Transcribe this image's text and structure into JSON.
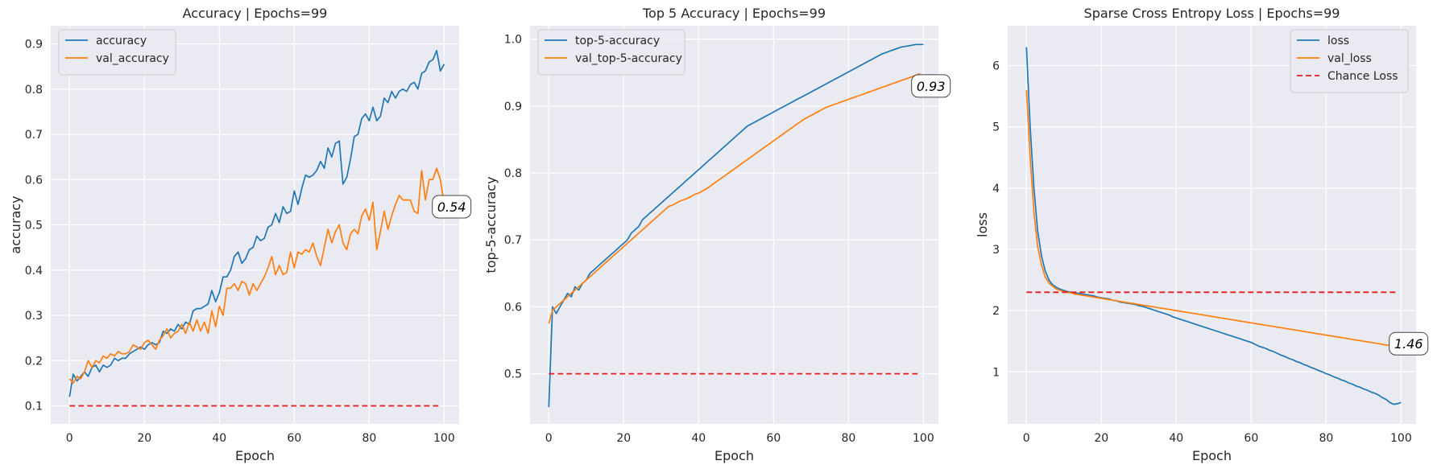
{
  "chart_data": [
    {
      "type": "line",
      "title": "Accuracy | Epochs=99",
      "xlabel": "Epoch",
      "ylabel": "accuracy",
      "xlim": [
        -5,
        104
      ],
      "ylim": [
        0.06,
        0.94
      ],
      "xticks": [
        0,
        20,
        40,
        60,
        80,
        100
      ],
      "yticks": [
        0.1,
        0.2,
        0.3,
        0.4,
        0.5,
        0.6,
        0.7,
        0.8,
        0.9
      ],
      "grid": true,
      "legend": "top-left",
      "annotation": {
        "text": "0.54",
        "x": 102,
        "y": 0.54
      },
      "series": [
        {
          "name": "accuracy",
          "color": "#1f77b4",
          "dashed": false,
          "values": [
            0.12,
            0.17,
            0.155,
            0.165,
            0.175,
            0.165,
            0.185,
            0.19,
            0.175,
            0.19,
            0.185,
            0.19,
            0.205,
            0.2,
            0.205,
            0.205,
            0.215,
            0.22,
            0.225,
            0.23,
            0.225,
            0.235,
            0.24,
            0.235,
            0.24,
            0.265,
            0.26,
            0.27,
            0.265,
            0.28,
            0.27,
            0.285,
            0.28,
            0.31,
            0.315,
            0.315,
            0.32,
            0.325,
            0.355,
            0.33,
            0.35,
            0.385,
            0.385,
            0.4,
            0.43,
            0.44,
            0.415,
            0.425,
            0.445,
            0.45,
            0.475,
            0.465,
            0.47,
            0.495,
            0.5,
            0.525,
            0.505,
            0.54,
            0.525,
            0.53,
            0.575,
            0.545,
            0.58,
            0.61,
            0.605,
            0.61,
            0.62,
            0.64,
            0.625,
            0.67,
            0.65,
            0.68,
            0.685,
            0.59,
            0.605,
            0.645,
            0.695,
            0.7,
            0.735,
            0.745,
            0.73,
            0.76,
            0.73,
            0.74,
            0.78,
            0.77,
            0.795,
            0.78,
            0.795,
            0.8,
            0.795,
            0.81,
            0.815,
            0.8,
            0.835,
            0.84,
            0.86,
            0.865,
            0.885,
            0.84,
            0.855
          ]
        },
        {
          "name": "val_accuracy",
          "color": "#ff7f0e",
          "dashed": false,
          "values": [
            0.16,
            0.15,
            0.165,
            0.16,
            0.175,
            0.2,
            0.185,
            0.2,
            0.195,
            0.21,
            0.205,
            0.215,
            0.21,
            0.22,
            0.215,
            0.215,
            0.22,
            0.235,
            0.23,
            0.225,
            0.24,
            0.245,
            0.235,
            0.225,
            0.245,
            0.255,
            0.27,
            0.25,
            0.26,
            0.265,
            0.28,
            0.26,
            0.285,
            0.265,
            0.29,
            0.265,
            0.285,
            0.26,
            0.31,
            0.275,
            0.32,
            0.3,
            0.36,
            0.36,
            0.37,
            0.355,
            0.375,
            0.37,
            0.345,
            0.37,
            0.355,
            0.37,
            0.385,
            0.405,
            0.43,
            0.39,
            0.41,
            0.39,
            0.395,
            0.44,
            0.405,
            0.44,
            0.435,
            0.445,
            0.44,
            0.46,
            0.43,
            0.41,
            0.45,
            0.49,
            0.46,
            0.485,
            0.5,
            0.46,
            0.445,
            0.48,
            0.49,
            0.48,
            0.52,
            0.535,
            0.51,
            0.55,
            0.445,
            0.485,
            0.53,
            0.49,
            0.52,
            0.545,
            0.565,
            0.555,
            0.555,
            0.555,
            0.53,
            0.525,
            0.62,
            0.555,
            0.6,
            0.6,
            0.625,
            0.6,
            0.545
          ]
        },
        {
          "name": "",
          "color": "#e41a1c",
          "dashed": true,
          "x": [
            0,
            99
          ],
          "values": [
            0.1,
            0.1
          ]
        }
      ]
    },
    {
      "type": "line",
      "title": "Top 5 Accuracy | Epochs=99",
      "xlabel": "Epoch",
      "ylabel": "top-5-accuracy",
      "xlim": [
        -5,
        104
      ],
      "ylim": [
        0.425,
        1.02
      ],
      "xticks": [
        0,
        20,
        40,
        60,
        80,
        100
      ],
      "yticks": [
        0.5,
        0.6,
        0.7,
        0.8,
        0.9,
        1.0
      ],
      "grid": true,
      "legend": "top-left",
      "annotation": {
        "text": "0.93",
        "x": 102,
        "y": 0.93
      },
      "series": [
        {
          "name": "top-5-accuracy",
          "color": "#1f77b4",
          "dashed": false,
          "values": [
            0.45,
            0.6,
            0.59,
            0.6,
            0.61,
            0.62,
            0.615,
            0.63,
            0.625,
            0.635,
            0.64,
            0.65,
            0.655,
            0.66,
            0.665,
            0.67,
            0.675,
            0.68,
            0.685,
            0.69,
            0.695,
            0.7,
            0.71,
            0.715,
            0.72,
            0.73,
            0.735,
            0.74,
            0.745,
            0.75,
            0.755,
            0.76,
            0.765,
            0.77,
            0.775,
            0.78,
            0.785,
            0.79,
            0.795,
            0.8,
            0.805,
            0.81,
            0.815,
            0.82,
            0.825,
            0.83,
            0.835,
            0.84,
            0.845,
            0.85,
            0.855,
            0.86,
            0.865,
            0.87,
            0.873,
            0.876,
            0.879,
            0.882,
            0.885,
            0.888,
            0.891,
            0.894,
            0.897,
            0.9,
            0.903,
            0.906,
            0.909,
            0.912,
            0.915,
            0.918,
            0.921,
            0.924,
            0.927,
            0.93,
            0.933,
            0.936,
            0.939,
            0.942,
            0.945,
            0.948,
            0.951,
            0.954,
            0.957,
            0.96,
            0.963,
            0.966,
            0.969,
            0.972,
            0.975,
            0.978,
            0.98,
            0.982,
            0.984,
            0.986,
            0.988,
            0.989,
            0.99,
            0.991,
            0.992,
            0.992,
            0.992
          ]
        },
        {
          "name": "val_top-5-accuracy",
          "color": "#ff7f0e",
          "dashed": false,
          "values": [
            0.575,
            0.595,
            0.6,
            0.605,
            0.61,
            0.615,
            0.62,
            0.625,
            0.63,
            0.635,
            0.64,
            0.645,
            0.65,
            0.655,
            0.66,
            0.665,
            0.67,
            0.675,
            0.68,
            0.685,
            0.69,
            0.695,
            0.7,
            0.705,
            0.71,
            0.715,
            0.72,
            0.725,
            0.73,
            0.735,
            0.74,
            0.745,
            0.75,
            0.752,
            0.755,
            0.758,
            0.76,
            0.762,
            0.765,
            0.768,
            0.77,
            0.773,
            0.776,
            0.78,
            0.784,
            0.788,
            0.792,
            0.796,
            0.8,
            0.804,
            0.808,
            0.812,
            0.816,
            0.82,
            0.824,
            0.828,
            0.832,
            0.836,
            0.84,
            0.844,
            0.848,
            0.852,
            0.856,
            0.86,
            0.864,
            0.868,
            0.872,
            0.876,
            0.88,
            0.883,
            0.886,
            0.889,
            0.892,
            0.895,
            0.898,
            0.9,
            0.902,
            0.904,
            0.906,
            0.908,
            0.91,
            0.912,
            0.914,
            0.916,
            0.918,
            0.92,
            0.922,
            0.924,
            0.926,
            0.928,
            0.93,
            0.932,
            0.934,
            0.936,
            0.938,
            0.94,
            0.942,
            0.944,
            0.946,
            0.948,
            0.93
          ]
        },
        {
          "name": "",
          "color": "#e41a1c",
          "dashed": true,
          "x": [
            0,
            99
          ],
          "values": [
            0.5,
            0.5
          ]
        }
      ]
    },
    {
      "type": "line",
      "title": "Sparse Cross Entropy Loss | Epochs=99",
      "xlabel": "Epoch",
      "ylabel": "loss",
      "xlim": [
        -5,
        104
      ],
      "ylim": [
        0.15,
        6.65
      ],
      "xticks": [
        0,
        20,
        40,
        60,
        80,
        100
      ],
      "yticks": [
        1,
        2,
        3,
        4,
        5,
        6
      ],
      "grid": true,
      "legend": "top-right",
      "annotation": {
        "text": "1.46",
        "x": 102,
        "y": 1.46
      },
      "series": [
        {
          "name": "loss",
          "color": "#1f77b4",
          "dashed": false,
          "values": [
            6.3,
            5.0,
            4.0,
            3.3,
            2.9,
            2.65,
            2.5,
            2.42,
            2.38,
            2.35,
            2.33,
            2.31,
            2.3,
            2.29,
            2.28,
            2.27,
            2.26,
            2.25,
            2.24,
            2.22,
            2.21,
            2.2,
            2.19,
            2.17,
            2.16,
            2.14,
            2.13,
            2.12,
            2.11,
            2.1,
            2.08,
            2.07,
            2.05,
            2.03,
            2.01,
            1.99,
            1.97,
            1.95,
            1.93,
            1.9,
            1.88,
            1.86,
            1.84,
            1.82,
            1.8,
            1.78,
            1.76,
            1.74,
            1.72,
            1.7,
            1.68,
            1.66,
            1.64,
            1.62,
            1.6,
            1.58,
            1.56,
            1.54,
            1.52,
            1.5,
            1.48,
            1.45,
            1.42,
            1.4,
            1.38,
            1.35,
            1.33,
            1.3,
            1.27,
            1.25,
            1.22,
            1.2,
            1.17,
            1.15,
            1.12,
            1.1,
            1.07,
            1.05,
            1.02,
            1.0,
            0.97,
            0.95,
            0.92,
            0.9,
            0.87,
            0.85,
            0.82,
            0.8,
            0.77,
            0.75,
            0.72,
            0.7,
            0.67,
            0.65,
            0.62,
            0.58,
            0.55,
            0.5,
            0.47,
            0.48,
            0.5
          ]
        },
        {
          "name": "val_loss",
          "color": "#ff7f0e",
          "dashed": false,
          "values": [
            5.6,
            4.5,
            3.6,
            3.05,
            2.75,
            2.55,
            2.45,
            2.4,
            2.35,
            2.33,
            2.31,
            2.3,
            2.29,
            2.27,
            2.26,
            2.25,
            2.24,
            2.23,
            2.22,
            2.21,
            2.2,
            2.19,
            2.18,
            2.17,
            2.16,
            2.15,
            2.14,
            2.13,
            2.12,
            2.11,
            2.1,
            2.09,
            2.08,
            2.07,
            2.06,
            2.05,
            2.04,
            2.03,
            2.02,
            2.01,
            2.0,
            1.99,
            1.98,
            1.97,
            1.96,
            1.95,
            1.94,
            1.93,
            1.92,
            1.91,
            1.9,
            1.89,
            1.88,
            1.87,
            1.86,
            1.85,
            1.84,
            1.83,
            1.82,
            1.81,
            1.8,
            1.79,
            1.78,
            1.77,
            1.76,
            1.75,
            1.74,
            1.73,
            1.72,
            1.71,
            1.7,
            1.69,
            1.68,
            1.67,
            1.66,
            1.65,
            1.64,
            1.63,
            1.62,
            1.61,
            1.6,
            1.59,
            1.58,
            1.57,
            1.56,
            1.55,
            1.54,
            1.53,
            1.52,
            1.51,
            1.5,
            1.49,
            1.48,
            1.47,
            1.46,
            1.45,
            1.44,
            1.43,
            1.3,
            1.32,
            1.46
          ]
        },
        {
          "name": "Chance Loss",
          "color": "#e41a1c",
          "dashed": true,
          "x": [
            0,
            99
          ],
          "values": [
            2.3,
            2.3
          ]
        }
      ]
    }
  ]
}
